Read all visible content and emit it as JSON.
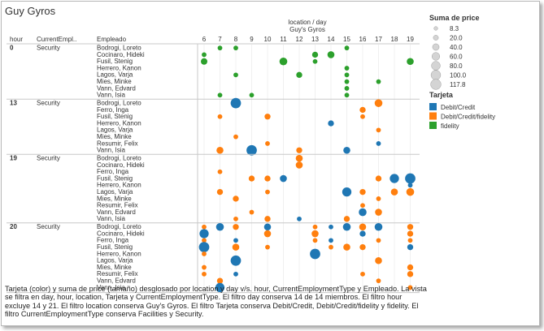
{
  "title": "Guy Gyros",
  "caption": "Tarjeta (color) y suma de price (tamaño) desglosado por location y day v/s.  hour, CurrentEmploymentType y Empleado. La vista se filtra en day, hour, location, Tarjeta y CurrentEmploymentType. El filtro day conserva 14 de 14 miembros. El filtro hour excluye 14 y 21. El filtro location conserva Guy's Gyros. El filtro Tarjeta conserva Debit/Credit, Debit/Credit/fidelity y fidelity. El filtro CurrentEmploymentType conserva Facilities y Security.",
  "colors": {
    "Debit/Credit": "#1f77b4",
    "Debit/Credit/fidelity": "#ff7f0e",
    "fidelity": "#2ca02c"
  },
  "chart_data": {
    "type": "scatter",
    "top_label": "location  /  day",
    "location_label": "Guy's Gyros",
    "row_headers": [
      "hour",
      "CurrentEmpl..",
      "Empleado"
    ],
    "days": [
      6,
      7,
      8,
      9,
      10,
      11,
      12,
      13,
      14,
      15,
      16,
      17,
      18,
      19
    ],
    "size_legend_title": "Suma de price",
    "size_legend": [
      8.3,
      20.0,
      40.0,
      60.0,
      80.0,
      100.0,
      117.8
    ],
    "color_legend_title": "Tarjeta",
    "color_legend": [
      "Debit/Credit",
      "Debit/Credit/fidelity",
      "fidelity"
    ],
    "groups": [
      {
        "hour": "0",
        "type": "Security",
        "rows": [
          {
            "name": "Bodrogi, Loreto",
            "points": [
              [
                7,
                "fidelity",
                10
              ],
              [
                8,
                "fidelity",
                10
              ],
              [
                15,
                "fidelity",
                10
              ]
            ]
          },
          {
            "name": "Cocinaro, Hideki",
            "points": [
              [
                6,
                "fidelity",
                10
              ],
              [
                13,
                "fidelity",
                20
              ],
              [
                14,
                "fidelity",
                30
              ]
            ]
          },
          {
            "name": "Fusil, Stenig",
            "points": [
              [
                6,
                "fidelity",
                25
              ],
              [
                11,
                "fidelity",
                40
              ],
              [
                13,
                "fidelity",
                10
              ],
              [
                19,
                "fidelity",
                30
              ]
            ]
          },
          {
            "name": "Herrero, Kanon",
            "points": [
              [
                15,
                "fidelity",
                10
              ]
            ]
          },
          {
            "name": "Lagos, Varja",
            "points": [
              [
                8,
                "fidelity",
                10
              ],
              [
                12,
                "fidelity",
                20
              ],
              [
                15,
                "fidelity",
                10
              ]
            ]
          },
          {
            "name": "Mies, Minke",
            "points": [
              [
                15,
                "fidelity",
                10
              ],
              [
                17,
                "fidelity",
                10
              ]
            ]
          },
          {
            "name": "Vann, Edvard",
            "points": [
              [
                15,
                "fidelity",
                10
              ]
            ]
          },
          {
            "name": "Vann, Isia",
            "points": [
              [
                7,
                "fidelity",
                10
              ],
              [
                9,
                "fidelity",
                10
              ],
              [
                15,
                "fidelity",
                10
              ]
            ]
          }
        ]
      },
      {
        "hour": "13",
        "type": "Security",
        "rows": [
          {
            "name": "Bodrogi, Loreto",
            "points": [
              [
                8,
                "Debit/Credit",
                80
              ],
              [
                17,
                "Debit/Credit/fidelity",
                40
              ]
            ]
          },
          {
            "name": "Ferro, Inga",
            "points": [
              [
                16,
                "Debit/Credit/fidelity",
                20
              ]
            ]
          },
          {
            "name": "Fusil, Stenig",
            "points": [
              [
                7,
                "Debit/Credit/fidelity",
                10
              ],
              [
                10,
                "Debit/Credit/fidelity",
                20
              ],
              [
                16,
                "Debit/Credit/fidelity",
                10
              ]
            ]
          },
          {
            "name": "Herrero, Kanon",
            "points": [
              [
                14,
                "Debit/Credit",
                20
              ]
            ]
          },
          {
            "name": "Lagos, Varja",
            "points": [
              [
                17,
                "Debit/Credit/fidelity",
                10
              ]
            ]
          },
          {
            "name": "Mies, Minke",
            "points": [
              [
                8,
                "Debit/Credit/fidelity",
                10
              ]
            ]
          },
          {
            "name": "Resumir, Felix",
            "points": [
              [
                10,
                "Debit/Credit/fidelity",
                10
              ],
              [
                17,
                "Debit/Credit",
                10
              ]
            ]
          },
          {
            "name": "Vann, Isia",
            "points": [
              [
                7,
                "Debit/Credit/fidelity",
                30
              ],
              [
                9,
                "Debit/Credit",
                80
              ],
              [
                12,
                "Debit/Credit/fidelity",
                20
              ],
              [
                15,
                "Debit/Credit",
                30
              ]
            ]
          }
        ]
      },
      {
        "hour": "19",
        "type": "Security",
        "rows": [
          {
            "name": "Bodrogi, Loreto",
            "points": [
              [
                12,
                "Debit/Credit/fidelity",
                30
              ]
            ]
          },
          {
            "name": "Cocinaro, Hideki",
            "points": [
              [
                12,
                "Debit/Credit/fidelity",
                30
              ]
            ]
          },
          {
            "name": "Ferro, Inga",
            "points": [
              [
                7,
                "Debit/Credit/fidelity",
                10
              ]
            ]
          },
          {
            "name": "Fusil, Stenig",
            "points": [
              [
                9,
                "Debit/Credit/fidelity",
                20
              ],
              [
                10,
                "Debit/Credit/fidelity",
                20
              ],
              [
                11,
                "Debit/Credit",
                30
              ],
              [
                17,
                "Debit/Credit/fidelity",
                20
              ],
              [
                18,
                "Debit/Credit",
                60
              ],
              [
                19,
                "Debit/Credit",
                80
              ]
            ]
          },
          {
            "name": "Herrero, Kanon",
            "points": [
              [
                19,
                "Debit/Credit",
                10
              ]
            ]
          },
          {
            "name": "Lagos, Varja",
            "points": [
              [
                7,
                "Debit/Credit/fidelity",
                20
              ],
              [
                10,
                "Debit/Credit/fidelity",
                10
              ],
              [
                15,
                "Debit/Credit",
                60
              ],
              [
                16,
                "Debit/Credit/fidelity",
                20
              ],
              [
                18,
                "Debit/Credit/fidelity",
                30
              ],
              [
                19,
                "Debit/Credit/fidelity",
                40
              ]
            ]
          },
          {
            "name": "Mies, Minke",
            "points": [
              [
                8,
                "Debit/Credit/fidelity",
                20
              ],
              [
                17,
                "Debit/Credit/fidelity",
                10
              ]
            ]
          },
          {
            "name": "Resumir, Felix",
            "points": [
              [
                16,
                "Debit/Credit/fidelity",
                10
              ]
            ]
          },
          {
            "name": "Vann, Edvard",
            "points": [
              [
                9,
                "Debit/Credit/fidelity",
                10
              ],
              [
                16,
                "Debit/Credit",
                40
              ],
              [
                17,
                "Debit/Credit/fidelity",
                30
              ]
            ]
          },
          {
            "name": "Vann, Isia",
            "points": [
              [
                8,
                "Debit/Credit/fidelity",
                10
              ],
              [
                10,
                "Debit/Credit/fidelity",
                20
              ],
              [
                12,
                "Debit/Credit",
                10
              ],
              [
                15,
                "Debit/Credit/fidelity",
                20
              ]
            ]
          }
        ]
      },
      {
        "hour": "20",
        "type": "Security",
        "rows": [
          {
            "name": "Bodrogi, Loreto",
            "points": [
              [
                6,
                "Debit/Credit/fidelity",
                10
              ],
              [
                7,
                "Debit/Credit",
                40
              ],
              [
                8,
                "Debit/Credit/fidelity",
                20
              ],
              [
                10,
                "Debit/Credit",
                30
              ],
              [
                13,
                "Debit/Credit/fidelity",
                10
              ],
              [
                14,
                "Debit/Credit",
                10
              ],
              [
                15,
                "Debit/Credit",
                40
              ],
              [
                16,
                "Debit/Credit/fidelity",
                30
              ],
              [
                17,
                "Debit/Credit",
                40
              ],
              [
                19,
                "Debit/Credit/fidelity",
                20
              ]
            ]
          },
          {
            "name": "Cocinaro, Hideki",
            "points": [
              [
                6,
                "Debit/Credit",
                60
              ],
              [
                10,
                "Debit/Credit/fidelity",
                30
              ],
              [
                13,
                "Debit/Credit/fidelity",
                30
              ],
              [
                16,
                "Debit/Credit",
                20
              ],
              [
                19,
                "Debit/Credit/fidelity",
                20
              ]
            ]
          },
          {
            "name": "Ferro, Inga",
            "points": [
              [
                6,
                "Debit/Credit/fidelity",
                10
              ],
              [
                8,
                "Debit/Credit",
                10
              ],
              [
                13,
                "Debit/Credit/fidelity",
                10
              ],
              [
                14,
                "Debit/Credit",
                10
              ],
              [
                17,
                "Debit/Credit/fidelity",
                10
              ],
              [
                19,
                "Debit/Credit/fidelity",
                10
              ]
            ]
          },
          {
            "name": "Fusil, Stenig",
            "points": [
              [
                6,
                "Debit/Credit",
                80
              ],
              [
                8,
                "Debit/Credit/fidelity",
                30
              ],
              [
                10,
                "Debit/Credit/fidelity",
                10
              ],
              [
                14,
                "Debit/Credit/fidelity",
                10
              ],
              [
                15,
                "Debit/Credit/fidelity",
                30
              ],
              [
                16,
                "Debit/Credit/fidelity",
                20
              ],
              [
                19,
                "Debit/Credit",
                20
              ]
            ]
          },
          {
            "name": "Herrero, Kanon",
            "points": [
              [
                6,
                "Debit/Credit/fidelity",
                10
              ],
              [
                13,
                "Debit/Credit",
                80
              ]
            ]
          },
          {
            "name": "Lagos, Varja",
            "points": [
              [
                8,
                "Debit/Credit",
                80
              ],
              [
                17,
                "Debit/Credit/fidelity",
                30
              ]
            ]
          },
          {
            "name": "Mies, Minke",
            "points": [
              [
                6,
                "Debit/Credit/fidelity",
                10
              ],
              [
                19,
                "Debit/Credit/fidelity",
                20
              ]
            ]
          },
          {
            "name": "Resumir, Felix",
            "points": [
              [
                6,
                "Debit/Credit/fidelity",
                10
              ],
              [
                8,
                "Debit/Credit",
                10
              ],
              [
                16,
                "Debit/Credit/fidelity",
                10
              ],
              [
                19,
                "Debit/Credit/fidelity",
                20
              ]
            ]
          },
          {
            "name": "Vann, Edvard",
            "points": [
              [
                7,
                "Debit/Credit/fidelity",
                20
              ],
              [
                17,
                "Debit/Credit/fidelity",
                10
              ]
            ]
          },
          {
            "name": "Vann, Isia",
            "points": [
              [
                7,
                "Debit/Credit",
                60
              ],
              [
                19,
                "Debit/Credit/fidelity",
                10
              ]
            ]
          }
        ]
      }
    ]
  }
}
